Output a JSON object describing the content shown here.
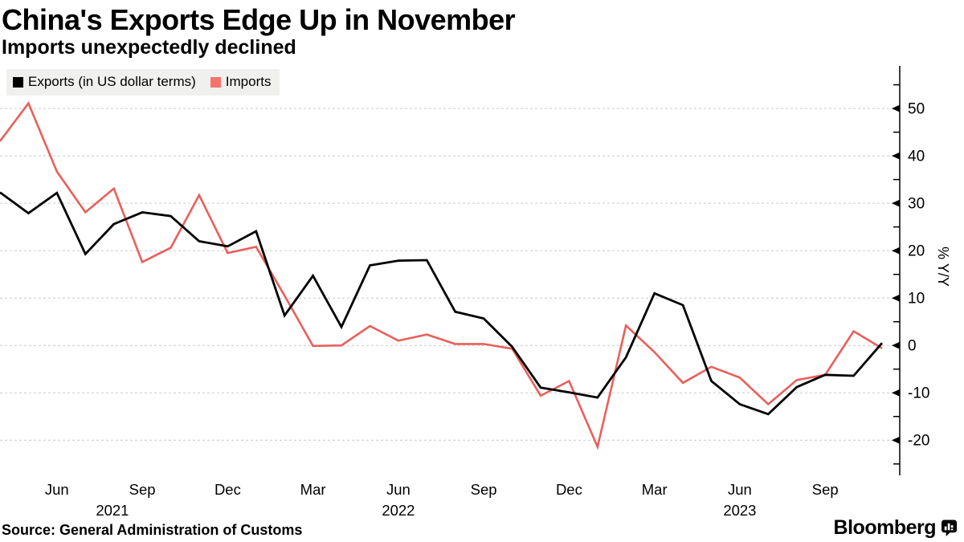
{
  "header": {
    "title": "China's Exports Edge Up in November",
    "subtitle": "Imports unexpectedly declined"
  },
  "legend": {
    "items": [
      {
        "label": "Exports (in US dollar terms)",
        "color": "#000000"
      },
      {
        "label": "Imports",
        "color": "#f6736d"
      }
    ]
  },
  "source": {
    "text": "Source: General Administration of Customs"
  },
  "footer": {
    "brand": "Bloomberg"
  },
  "colors": {
    "exports_line": "#000000",
    "imports_line": "#e8605a",
    "gridline": "#c9c9c9",
    "legend_background": "#f0f0ee",
    "background": "#ffffff"
  },
  "chart_data": {
    "type": "line",
    "title": "China's Exports Edge Up in November",
    "subtitle": "Imports unexpectedly declined",
    "ylabel": "% Y/Y",
    "ylim": [
      -27,
      58
    ],
    "yticks": [
      50,
      40,
      30,
      20,
      10,
      0,
      -10,
      -20
    ],
    "yticks_minor": [
      55,
      45,
      35,
      25,
      15,
      5,
      -5,
      -15,
      -25
    ],
    "grid": "horizontal-dashed",
    "legend_position": "top-left",
    "y_axis_side": "right",
    "months": [
      "Apr 2021",
      "May 2021",
      "Jun 2021",
      "Jul 2021",
      "Aug 2021",
      "Sep 2021",
      "Oct 2021",
      "Nov 2021",
      "Dec 2021",
      "Jan 2022",
      "Feb 2022",
      "Mar 2022",
      "Apr 2022",
      "May 2022",
      "Jun 2022",
      "Jul 2022",
      "Aug 2022",
      "Sep 2022",
      "Oct 2022",
      "Nov 2022",
      "Dec 2022",
      "Jan 2023",
      "Feb 2023",
      "Mar 2023",
      "Apr 2023",
      "May 2023",
      "Jun 2023",
      "Jul 2023",
      "Aug 2023",
      "Sep 2023",
      "Oct 2023",
      "Nov 2023"
    ],
    "x_tick_labels": [
      {
        "label": "Jun",
        "month_index": 2
      },
      {
        "label": "Sep",
        "month_index": 5
      },
      {
        "label": "Dec",
        "month_index": 8
      },
      {
        "label": "Mar",
        "month_index": 11
      },
      {
        "label": "Jun",
        "month_index": 14
      },
      {
        "label": "Sep",
        "month_index": 17
      },
      {
        "label": "Dec",
        "month_index": 20
      },
      {
        "label": "Mar",
        "month_index": 23
      },
      {
        "label": "Jun",
        "month_index": 26
      },
      {
        "label": "Sep",
        "month_index": 29
      }
    ],
    "year_labels": [
      {
        "label": "2021",
        "month_index": 3.95
      },
      {
        "label": "2022",
        "month_index": 14
      },
      {
        "label": "2023",
        "month_index": 26
      }
    ],
    "series": [
      {
        "name": "Exports (in US dollar terms)",
        "color": "#000000",
        "values": [
          32.3,
          27.9,
          32.2,
          19.3,
          25.6,
          28.1,
          27.3,
          22.0,
          20.9,
          24.1,
          6.3,
          14.7,
          3.9,
          16.9,
          17.9,
          18.0,
          7.1,
          5.7,
          -0.3,
          -8.9,
          -9.9,
          -11.0,
          -2.5,
          11.0,
          8.5,
          -7.5,
          -12.4,
          -14.5,
          -8.8,
          -6.2,
          -6.4,
          0.5
        ]
      },
      {
        "name": "Imports",
        "color": "#e8605a",
        "values": [
          43.1,
          51.1,
          36.7,
          28.1,
          33.1,
          17.6,
          20.6,
          31.7,
          19.5,
          20.8,
          10.5,
          -0.1,
          0.0,
          4.1,
          1.0,
          2.3,
          0.3,
          0.3,
          -0.7,
          -10.6,
          -7.5,
          -21.4,
          4.2,
          -1.4,
          -7.9,
          -4.5,
          -6.8,
          -12.4,
          -7.3,
          -6.2,
          3.0,
          -0.6
        ]
      }
    ]
  }
}
